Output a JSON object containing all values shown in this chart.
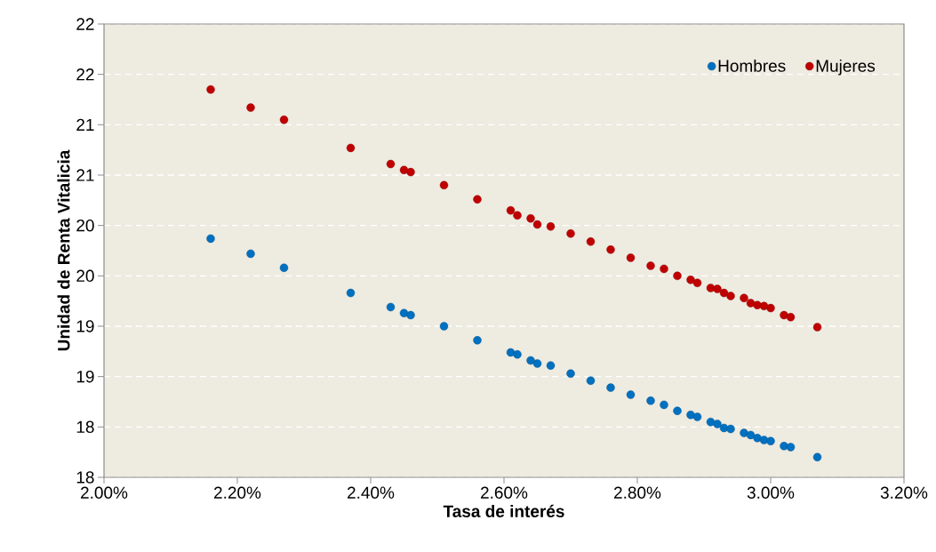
{
  "chart_data": {
    "type": "scatter",
    "xlabel": "Tasa de interés",
    "ylabel": "Unidad de Renta Vitalicia",
    "x": [
      2.16,
      2.22,
      2.27,
      2.37,
      2.43,
      2.45,
      2.46,
      2.51,
      2.56,
      2.61,
      2.62,
      2.64,
      2.65,
      2.67,
      2.7,
      2.73,
      2.76,
      2.79,
      2.82,
      2.84,
      2.86,
      2.88,
      2.89,
      2.91,
      2.92,
      2.93,
      2.94,
      2.96,
      2.97,
      2.98,
      2.99,
      3.0,
      3.02,
      3.03,
      3.07
    ],
    "series": [
      {
        "name": "Hombres",
        "color": "#0070c0",
        "values": [
          20.17,
          20.02,
          19.88,
          19.63,
          19.49,
          19.43,
          19.41,
          19.3,
          19.16,
          19.04,
          19.02,
          18.96,
          18.93,
          18.91,
          18.83,
          18.76,
          18.69,
          18.62,
          18.56,
          18.52,
          18.46,
          18.42,
          18.4,
          18.35,
          18.33,
          18.29,
          18.28,
          18.24,
          18.22,
          18.19,
          18.17,
          18.16,
          18.11,
          18.1,
          18.0
        ]
      },
      {
        "name": "Mujeres",
        "color": "#c00000",
        "values": [
          21.65,
          21.47,
          21.35,
          21.07,
          20.91,
          20.85,
          20.83,
          20.7,
          20.56,
          20.45,
          20.4,
          20.37,
          20.31,
          20.29,
          20.22,
          20.14,
          20.06,
          19.98,
          19.9,
          19.87,
          19.8,
          19.76,
          19.73,
          19.68,
          19.67,
          19.63,
          19.6,
          19.58,
          19.53,
          19.51,
          19.5,
          19.48,
          19.41,
          19.39,
          19.29
        ]
      }
    ],
    "xlim": [
      2.0,
      3.2
    ],
    "xticks": [
      {
        "value": 2.0,
        "label": "2.00%"
      },
      {
        "value": 2.2,
        "label": "2.20%"
      },
      {
        "value": 2.4,
        "label": "2.40%"
      },
      {
        "value": 2.6,
        "label": "2.60%"
      },
      {
        "value": 2.8,
        "label": "2.80%"
      },
      {
        "value": 3.0,
        "label": "3.00%"
      },
      {
        "value": 3.2,
        "label": "3.20%"
      }
    ],
    "ylim": [
      17.8,
      22.3
    ],
    "yticks": [
      {
        "value": 17.8,
        "label": "18"
      },
      {
        "value": 18.3,
        "label": "18"
      },
      {
        "value": 18.8,
        "label": "19"
      },
      {
        "value": 19.3,
        "label": "19"
      },
      {
        "value": 19.8,
        "label": "20"
      },
      {
        "value": 20.3,
        "label": "20"
      },
      {
        "value": 20.8,
        "label": "21"
      },
      {
        "value": 21.3,
        "label": "21"
      },
      {
        "value": 21.8,
        "label": "22"
      },
      {
        "value": 22.3,
        "label": "22"
      }
    ],
    "grid": "y",
    "legend": "top right",
    "marker": "circle"
  }
}
